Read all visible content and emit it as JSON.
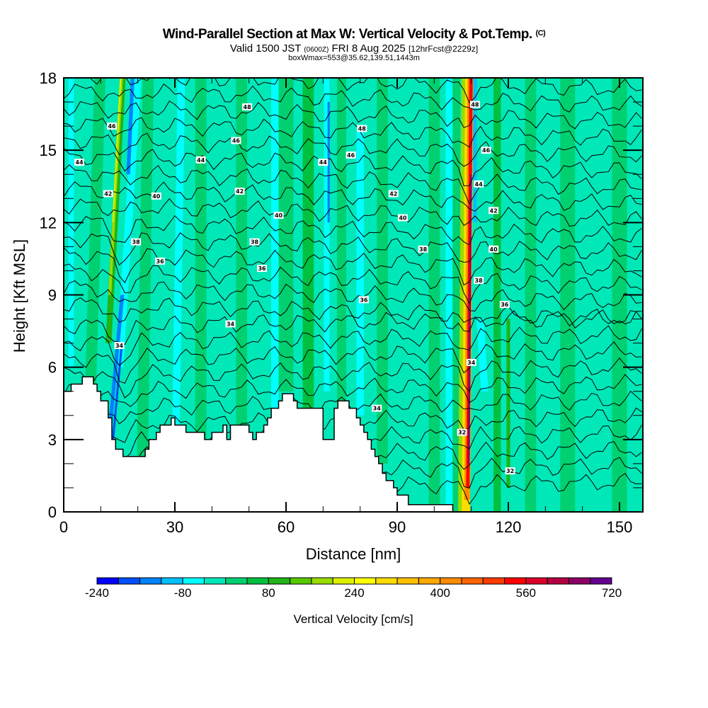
{
  "header": {
    "title": "Wind-Parallel Section at Max W: Vertical Velocity & Pot.Temp.",
    "title_suffix": "(C)",
    "valid_prefix": "Valid 1500 JST",
    "valid_utc": "(0600Z)",
    "valid_date": "FRI 8 Aug 2025",
    "forecast_info": "[12hrFcst@2229z]",
    "box_info": "boxWmax=553@35.62,139.51,1443m"
  },
  "chart_data": {
    "type": "heatmap",
    "title": "Wind-Parallel Section at Max W: Vertical Velocity & Pot.Temp.",
    "xlabel": "Distance [nm]",
    "ylabel": "Height [Kft MSL]",
    "xlim": [
      0,
      156
    ],
    "ylim": [
      0,
      18
    ],
    "x_ticks": [
      0,
      30,
      60,
      90,
      120,
      150
    ],
    "x_tick_labels": [
      "0",
      "30",
      "60",
      "90",
      "120",
      "150"
    ],
    "y_ticks": [
      0,
      3,
      6,
      9,
      12,
      15,
      18
    ],
    "y_tick_labels": [
      "0",
      "3",
      "6",
      "9",
      "12",
      "15",
      "18"
    ],
    "x_minor_step": 10,
    "y_minor_step": 1,
    "colorbar": {
      "title": "Vertical Velocity [cm/s]",
      "levels": [
        -240,
        -200,
        -160,
        -120,
        -80,
        -40,
        0,
        40,
        80,
        120,
        160,
        200,
        240,
        280,
        320,
        360,
        400,
        440,
        480,
        520,
        560,
        600,
        640,
        680,
        720
      ],
      "tick_labels": [
        "-240",
        "-80",
        "80",
        "240",
        "400",
        "560",
        "720"
      ],
      "colors": [
        "#0000ff",
        "#0050ff",
        "#0082ff",
        "#00c0ff",
        "#00ffff",
        "#00e8b8",
        "#00d070",
        "#00c040",
        "#20b418",
        "#58c800",
        "#98dc00",
        "#dcf000",
        "#ffff00",
        "#ffdc00",
        "#ffc000",
        "#ffa800",
        "#ff8c00",
        "#ff6400",
        "#ff3c00",
        "#ff0000",
        "#dc0028",
        "#b40040",
        "#8c0064",
        "#640090"
      ]
    },
    "terrain_kft": {
      "x_nm": [
        0,
        2,
        5,
        8,
        9,
        10,
        12,
        13,
        14,
        16,
        22,
        23,
        25,
        26,
        29,
        30,
        33,
        37,
        38,
        40,
        43,
        44,
        45,
        47,
        50,
        51,
        52,
        54,
        55,
        56,
        58,
        59,
        61,
        62,
        63,
        64,
        67,
        70,
        73,
        74,
        76,
        77,
        79,
        80,
        81,
        82,
        83,
        84,
        85,
        86,
        87,
        88,
        89,
        90,
        91,
        92,
        93,
        95,
        97,
        98,
        101,
        102,
        105,
        106,
        107,
        108,
        109
      ],
      "top_kft": [
        5.0,
        5.3,
        5.6,
        5.3,
        5.0,
        4.6,
        3.9,
        3.0,
        2.6,
        2.3,
        2.6,
        3.0,
        3.3,
        3.6,
        3.9,
        3.6,
        3.3,
        3.3,
        3.0,
        3.3,
        3.6,
        3.0,
        3.6,
        3.6,
        3.3,
        3.0,
        3.3,
        3.6,
        3.9,
        4.3,
        4.6,
        4.9,
        4.9,
        4.6,
        4.3,
        4.3,
        4.3,
        3.0,
        4.3,
        4.6,
        4.6,
        4.3,
        3.9,
        3.6,
        3.3,
        3.0,
        2.6,
        2.3,
        2.0,
        1.6,
        1.3,
        1.3,
        1.0,
        0.7,
        0.7,
        0.7,
        0.3,
        0.3,
        0.3,
        0.3,
        0.3,
        0.3,
        0,
        0,
        0,
        0,
        0
      ]
    },
    "updraft_max_location_nm": 109.5,
    "contour_variable": "Potential Temperature (C)",
    "contour_labels": [
      {
        "value": "48",
        "x_nm": 49.5,
        "y_kft": 16.8
      },
      {
        "value": "48",
        "x_nm": 80.5,
        "y_kft": 15.9
      },
      {
        "value": "48",
        "x_nm": 111,
        "y_kft": 16.9
      },
      {
        "value": "46",
        "x_nm": 13,
        "y_kft": 16.0
      },
      {
        "value": "46",
        "x_nm": 46.5,
        "y_kft": 15.4
      },
      {
        "value": "46",
        "x_nm": 77.5,
        "y_kft": 14.8
      },
      {
        "value": "46",
        "x_nm": 114,
        "y_kft": 15.0
      },
      {
        "value": "44",
        "x_nm": 4.2,
        "y_kft": 14.5
      },
      {
        "value": "44",
        "x_nm": 37,
        "y_kft": 14.6
      },
      {
        "value": "44",
        "x_nm": 70,
        "y_kft": 14.5
      },
      {
        "value": "44",
        "x_nm": 112,
        "y_kft": 13.6
      },
      {
        "value": "42",
        "x_nm": 12,
        "y_kft": 13.2
      },
      {
        "value": "42",
        "x_nm": 47.5,
        "y_kft": 13.3
      },
      {
        "value": "42",
        "x_nm": 89,
        "y_kft": 13.2
      },
      {
        "value": "42",
        "x_nm": 116,
        "y_kft": 12.5
      },
      {
        "value": "40",
        "x_nm": 25,
        "y_kft": 13.1
      },
      {
        "value": "40",
        "x_nm": 58,
        "y_kft": 12.3
      },
      {
        "value": "40",
        "x_nm": 91.5,
        "y_kft": 12.2
      },
      {
        "value": "40",
        "x_nm": 116,
        "y_kft": 10.9
      },
      {
        "value": "38",
        "x_nm": 19.5,
        "y_kft": 11.2
      },
      {
        "value": "38",
        "x_nm": 51.5,
        "y_kft": 11.2
      },
      {
        "value": "38",
        "x_nm": 97,
        "y_kft": 10.9
      },
      {
        "value": "38",
        "x_nm": 112,
        "y_kft": 9.6
      },
      {
        "value": "36",
        "x_nm": 26,
        "y_kft": 10.4
      },
      {
        "value": "36",
        "x_nm": 53.5,
        "y_kft": 10.1
      },
      {
        "value": "36",
        "x_nm": 81,
        "y_kft": 8.8
      },
      {
        "value": "36",
        "x_nm": 119,
        "y_kft": 8.6
      },
      {
        "value": "34",
        "x_nm": 15,
        "y_kft": 6.9
      },
      {
        "value": "34",
        "x_nm": 45,
        "y_kft": 7.8
      },
      {
        "value": "34",
        "x_nm": 84.5,
        "y_kft": 4.3
      },
      {
        "value": "34",
        "x_nm": 110,
        "y_kft": 6.2
      },
      {
        "value": "32",
        "x_nm": 107.5,
        "y_kft": 3.3
      },
      {
        "value": "32",
        "x_nm": 120.5,
        "y_kft": 1.7
      }
    ]
  }
}
